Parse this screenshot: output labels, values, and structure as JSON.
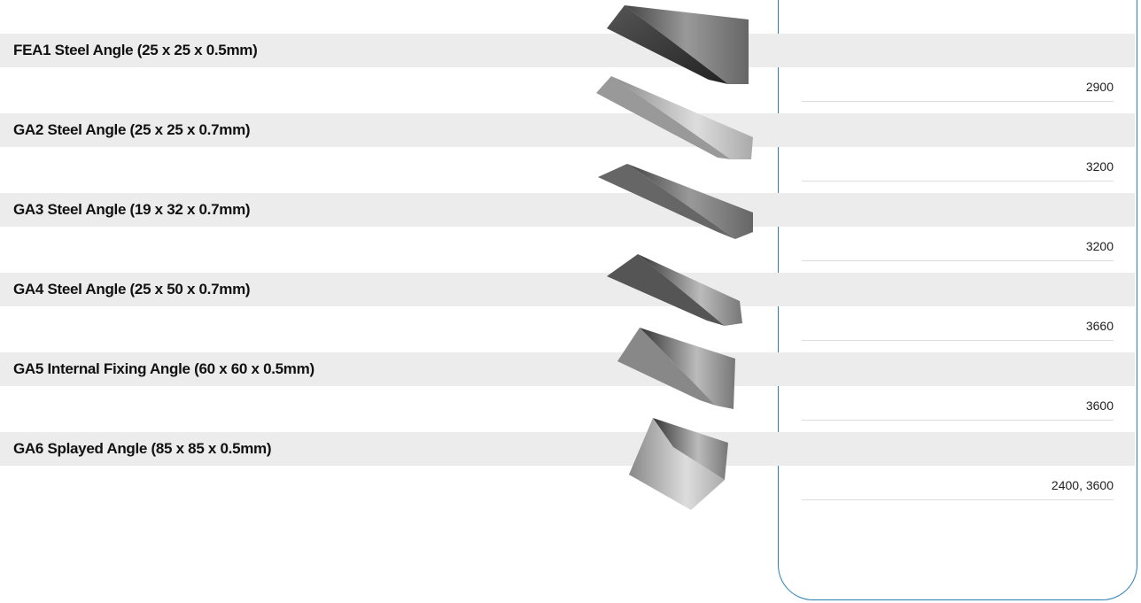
{
  "products": [
    {
      "name": "FEA1 Steel Angle (25 x 25 x 0.5mm)",
      "length": "2900"
    },
    {
      "name": "GA2 Steel Angle (25 x 25 x 0.7mm)",
      "length": "3200"
    },
    {
      "name": "GA3 Steel Angle (19 x 32 x 0.7mm)",
      "length": "3200"
    },
    {
      "name": "GA4 Steel Angle (25 x 50 x 0.7mm)",
      "length": "3660"
    },
    {
      "name": "GA5 Internal Fixing Angle (60 x 60 x 0.5mm)",
      "length": "3600"
    },
    {
      "name": "GA6 Splayed Angle (85 x 85 x 0.5mm)",
      "length": "2400, 3600"
    }
  ]
}
